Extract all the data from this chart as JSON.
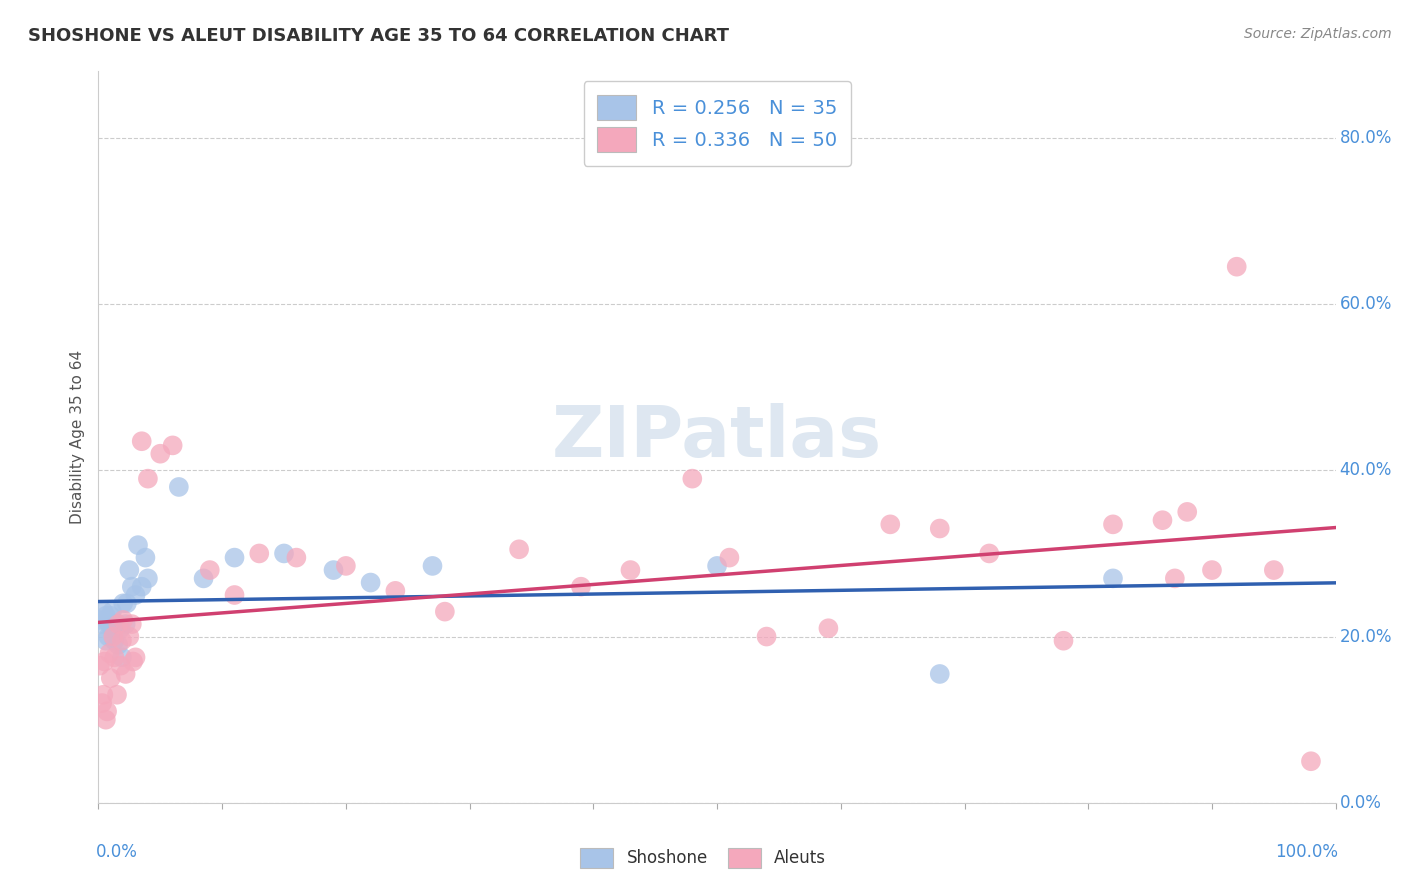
{
  "title": "SHOSHONE VS ALEUT DISABILITY AGE 35 TO 64 CORRELATION CHART",
  "source": "Source: ZipAtlas.com",
  "ylabel": "Disability Age 35 to 64",
  "shoshone_color": "#a8c4e8",
  "aleuts_color": "#f4a8bc",
  "shoshone_line_color": "#3060b0",
  "aleuts_line_color": "#d04070",
  "watermark_text": "ZIPatlas",
  "legend_label_shoshone": "R = 0.256   N = 35",
  "legend_label_aleuts": "R = 0.336   N = 50",
  "shoshone_x": [
    0.001,
    0.003,
    0.004,
    0.006,
    0.006,
    0.008,
    0.009,
    0.01,
    0.011,
    0.012,
    0.013,
    0.015,
    0.016,
    0.018,
    0.019,
    0.02,
    0.022,
    0.023,
    0.025,
    0.027,
    0.03,
    0.032,
    0.035,
    0.038,
    0.04,
    0.065,
    0.085,
    0.11,
    0.15,
    0.19,
    0.22,
    0.27,
    0.5,
    0.68,
    0.82
  ],
  "shoshone_y": [
    0.22,
    0.215,
    0.23,
    0.225,
    0.195,
    0.2,
    0.215,
    0.225,
    0.23,
    0.21,
    0.195,
    0.215,
    0.19,
    0.21,
    0.175,
    0.24,
    0.215,
    0.24,
    0.28,
    0.26,
    0.25,
    0.31,
    0.26,
    0.295,
    0.27,
    0.38,
    0.27,
    0.295,
    0.3,
    0.28,
    0.265,
    0.285,
    0.285,
    0.155,
    0.27
  ],
  "aleuts_x": [
    0.001,
    0.003,
    0.004,
    0.005,
    0.006,
    0.007,
    0.009,
    0.01,
    0.012,
    0.013,
    0.015,
    0.016,
    0.018,
    0.019,
    0.02,
    0.022,
    0.025,
    0.027,
    0.028,
    0.03,
    0.035,
    0.04,
    0.05,
    0.06,
    0.09,
    0.11,
    0.13,
    0.16,
    0.2,
    0.24,
    0.28,
    0.34,
    0.39,
    0.43,
    0.48,
    0.51,
    0.54,
    0.59,
    0.64,
    0.68,
    0.72,
    0.78,
    0.82,
    0.86,
    0.87,
    0.88,
    0.9,
    0.92,
    0.95,
    0.98
  ],
  "aleuts_y": [
    0.165,
    0.12,
    0.13,
    0.17,
    0.1,
    0.11,
    0.18,
    0.15,
    0.2,
    0.175,
    0.13,
    0.215,
    0.165,
    0.195,
    0.22,
    0.155,
    0.2,
    0.215,
    0.17,
    0.175,
    0.435,
    0.39,
    0.42,
    0.43,
    0.28,
    0.25,
    0.3,
    0.295,
    0.285,
    0.255,
    0.23,
    0.305,
    0.26,
    0.28,
    0.39,
    0.295,
    0.2,
    0.21,
    0.335,
    0.33,
    0.3,
    0.195,
    0.335,
    0.34,
    0.27,
    0.35,
    0.28,
    0.645,
    0.28,
    0.05
  ],
  "xlim": [
    0,
    1.0
  ],
  "ylim": [
    0,
    0.88
  ],
  "yticks": [
    0.0,
    0.2,
    0.4,
    0.6,
    0.8
  ],
  "ytick_labels": [
    "0.0%",
    "20.0%",
    "40.0%",
    "60.0%",
    "80.0%"
  ],
  "xtick_left_label": "0.0%",
  "xtick_right_label": "100.0%",
  "tick_color": "#4a90d9",
  "bottom_legend_shoshone": "Shoshone",
  "bottom_legend_aleuts": "Aleuts"
}
